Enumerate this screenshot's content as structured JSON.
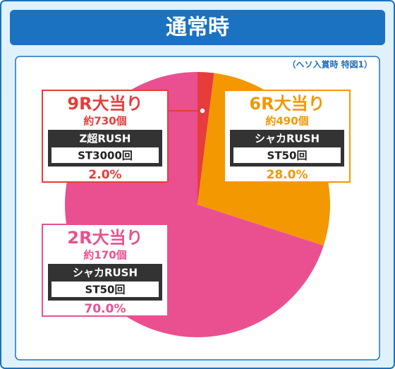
{
  "chart_data": {
    "type": "pie",
    "title": "通常時",
    "subtitle": "（ヘソ入賞時 特図1）",
    "categories": [
      "9R大当り",
      "6R大当り",
      "2R大当り"
    ],
    "values": [
      2,
      28,
      70
    ],
    "value_labels": [
      "2.0%",
      "28.0%",
      "70.0%"
    ],
    "colors": [
      "#e73c3c",
      "#f39800",
      "#ea5090"
    ],
    "details": [
      {
        "balls": "約730個",
        "mode": "Z超RUSH",
        "st": "ST3000回"
      },
      {
        "balls": "約490個",
        "mode": "シャカRUSH",
        "st": "ST50回"
      },
      {
        "balls": "約170個",
        "mode": "シャカRUSH",
        "st": "ST50回"
      }
    ]
  }
}
